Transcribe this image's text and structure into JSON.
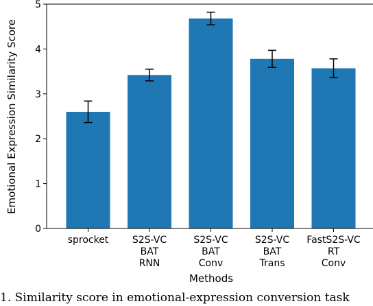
{
  "chart_data": {
    "type": "bar",
    "categories": [
      [
        "sprocket"
      ],
      [
        "S2S-VC",
        "BAT",
        "RNN"
      ],
      [
        "S2S-VC",
        "BAT",
        "Conv"
      ],
      [
        "S2S-VC",
        "BAT",
        "Trans"
      ],
      [
        "FastS2S-VC",
        "RT",
        "Conv"
      ]
    ],
    "values": [
      2.6,
      3.42,
      4.68,
      3.78,
      3.57
    ],
    "errors": [
      0.24,
      0.13,
      0.14,
      0.19,
      0.21
    ],
    "xlabel": "Methods",
    "ylabel": "Emotional Expression Similarity Score",
    "ylim": [
      0,
      5
    ],
    "yticks": [
      "0",
      "1",
      "2",
      "3",
      "4",
      "5"
    ],
    "grid": false,
    "legend": "none",
    "bar_color": "#1f77b4",
    "error_color": "#000000"
  },
  "caption": "1.  Similarity score in emotional-expression conversion task"
}
